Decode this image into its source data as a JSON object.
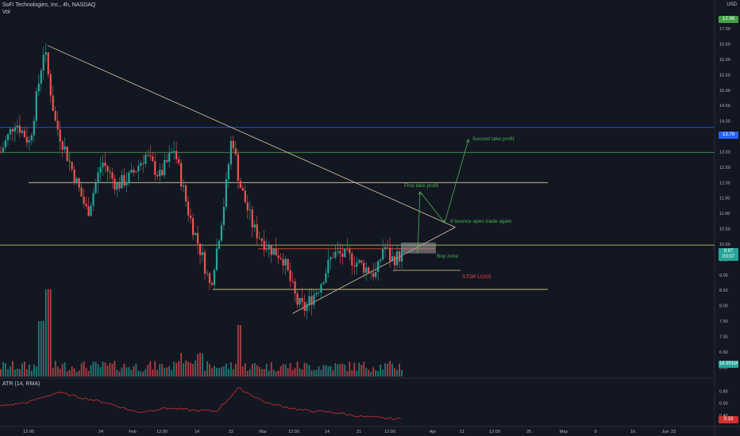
{
  "header": {
    "symbol_line": "SoFi Technologies, Inc., 4h, NASDAQ",
    "volume_label": "Vol",
    "currency": "USD",
    "atr_label": "ATR (14, RMA)"
  },
  "price_axis": {
    "ticks": [
      "17.00",
      "16.50",
      "16.00",
      "15.50",
      "15.00",
      "14.50",
      "14.00",
      "13.50",
      "13.00",
      "12.50",
      "12.00",
      "11.50",
      "11.00",
      "10.50",
      "10.00",
      "9.50",
      "9.00",
      "8.50",
      "8.00",
      "7.50",
      "7.00",
      "6.50",
      "6.00"
    ],
    "highlight_levels": {
      "top_green": "12.98",
      "blue": "13.79",
      "last_price": "9.97",
      "countdown": "03:07",
      "volume_tag": "18.991M"
    }
  },
  "atr_axis": {
    "ticks": [
      "0.80",
      "0.60",
      "0.40"
    ],
    "current": "0.33"
  },
  "time_axis": {
    "labels": [
      "12:00",
      "24",
      "Feb",
      "12:00",
      "14",
      "22",
      "Mar",
      "12:00",
      "14",
      "21",
      "12:00",
      "Apr",
      "11",
      "12:00",
      "25",
      "May",
      "9",
      "16",
      "23",
      "Jun"
    ]
  },
  "annotations": {
    "first_take_profit": "First take profit",
    "second_take_profit": "Second take profit",
    "bounce_note": "If bounce open trade again",
    "buy_zone": "Buy zone",
    "stop_loss": "STOP LOSS"
  },
  "colors": {
    "background": "#131722",
    "up": "#26a69a",
    "down": "#ef5350",
    "trendline": "#e6c9a0",
    "level_yellow": "#e8d28a",
    "level_blue": "#2962ff",
    "level_green": "#4caf50",
    "level_red": "#f44336",
    "annotation_green": "#4caf50",
    "annotation_red": "#f44336",
    "atr_line": "#d32f2f"
  },
  "chart_data": {
    "type": "candlestick",
    "title": "SoFi Technologies, Inc., 4h, NASDAQ",
    "y_range": [
      5.7,
      17.8
    ],
    "price_path": [
      [
        0,
        13.0
      ],
      [
        0.02,
        14.0
      ],
      [
        0.04,
        13.3
      ],
      [
        0.06,
        16.4
      ],
      [
        0.075,
        14.0
      ],
      [
        0.09,
        13.0
      ],
      [
        0.12,
        11.0
      ],
      [
        0.14,
        12.7
      ],
      [
        0.16,
        11.9
      ],
      [
        0.18,
        12.2
      ],
      [
        0.2,
        12.9
      ],
      [
        0.22,
        12.2
      ],
      [
        0.24,
        13.1
      ],
      [
        0.26,
        11.0
      ],
      [
        0.28,
        9.5
      ],
      [
        0.29,
        8.6
      ],
      [
        0.3,
        10.0
      ],
      [
        0.31,
        11.5
      ],
      [
        0.32,
        13.6
      ],
      [
        0.33,
        12.0
      ],
      [
        0.35,
        10.5
      ],
      [
        0.37,
        9.9
      ],
      [
        0.39,
        9.6
      ],
      [
        0.41,
        8.1
      ],
      [
        0.42,
        7.9
      ],
      [
        0.44,
        8.6
      ],
      [
        0.46,
        9.7
      ],
      [
        0.48,
        9.6
      ],
      [
        0.5,
        9.3
      ],
      [
        0.52,
        9.0
      ],
      [
        0.53,
        10.0
      ],
      [
        0.54,
        9.5
      ],
      [
        0.56,
        9.7
      ]
    ],
    "atr_range": [
      0.28,
      0.95
    ],
    "atr_path": [
      [
        0,
        0.55
      ],
      [
        0.04,
        0.62
      ],
      [
        0.08,
        0.78
      ],
      [
        0.11,
        0.7
      ],
      [
        0.15,
        0.6
      ],
      [
        0.19,
        0.45
      ],
      [
        0.23,
        0.52
      ],
      [
        0.27,
        0.48
      ],
      [
        0.3,
        0.47
      ],
      [
        0.33,
        0.85
      ],
      [
        0.37,
        0.6
      ],
      [
        0.42,
        0.48
      ],
      [
        0.46,
        0.45
      ],
      [
        0.5,
        0.38
      ],
      [
        0.56,
        0.33
      ]
    ],
    "levels": [
      {
        "price": 12.98,
        "color": "green",
        "extent": "full"
      },
      {
        "price": 13.79,
        "color": "blue",
        "extent": "full"
      },
      {
        "price": 9.97,
        "color": "yellow",
        "extent": "full"
      },
      {
        "price": 12.0,
        "color": "yellow",
        "extent": "partial"
      },
      {
        "price": 8.53,
        "color": "yellow",
        "extent": "partial"
      },
      {
        "price": 9.15,
        "color": "yellow",
        "extent": "short"
      },
      {
        "price": 9.85,
        "color": "red",
        "extent": "short"
      }
    ],
    "trendlines": [
      {
        "from": [
          0.066,
          16.45
        ],
        "to": [
          0.63,
          10.55
        ]
      },
      {
        "from": [
          0.405,
          7.75
        ],
        "to": [
          0.63,
          10.55
        ]
      }
    ]
  }
}
